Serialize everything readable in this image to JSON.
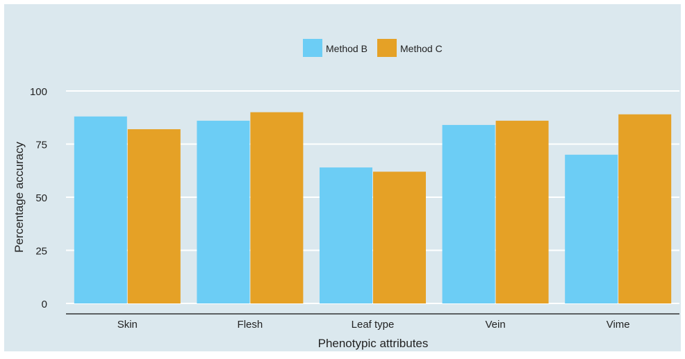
{
  "chart_data": {
    "type": "bar",
    "categories": [
      "Skin",
      "Flesh",
      "Leaf type",
      "Vein",
      "Vime"
    ],
    "series": [
      {
        "name": "Method B",
        "color": "#6ccdf5",
        "values": [
          88,
          86,
          64,
          84,
          70
        ]
      },
      {
        "name": "Method C",
        "color": "#e5a126",
        "values": [
          82,
          90,
          62,
          86,
          89
        ]
      }
    ],
    "title": "",
    "xlabel": "Phenotypic attributes",
    "ylabel": "Percentage accuracy",
    "ylim": [
      0,
      100
    ],
    "yticks": [
      0,
      25,
      50,
      75,
      100
    ],
    "grid": true,
    "legend_position": "top-center",
    "background_color": "#dbe8ee",
    "grid_color": "#ffffff",
    "axis_color": "#333333"
  }
}
